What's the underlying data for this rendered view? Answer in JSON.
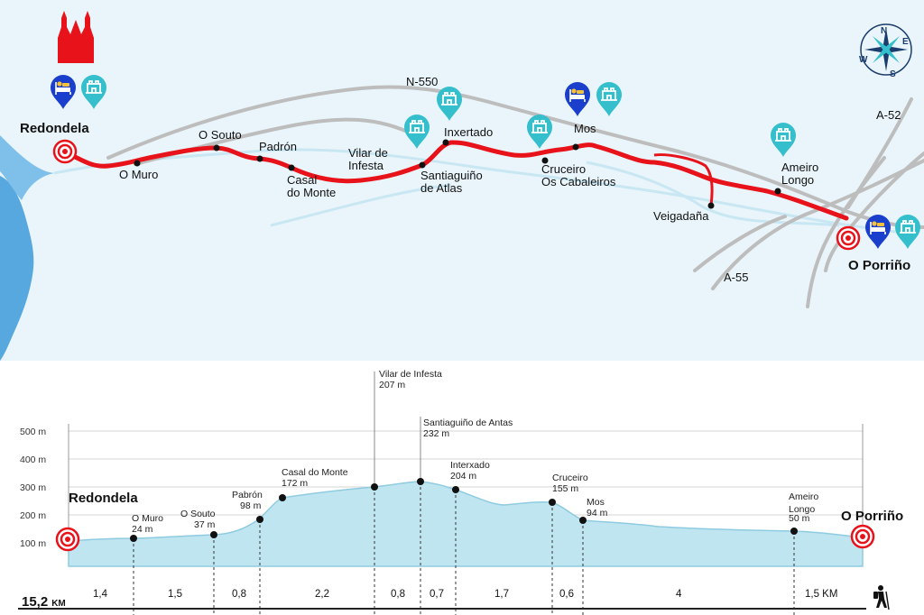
{
  "colors": {
    "map_bg": "#e9f5fa",
    "water": "#d0ecf5",
    "sea": "#58a8e0",
    "road": "#bdbdbd",
    "route": "#e8121a",
    "marker_blue": "#1a3fcc",
    "marker_teal": "#35bfcd",
    "profile_fill": "#bfe5f1",
    "profile_top": "#8fcbe0"
  },
  "map": {
    "start_town": "Redondela",
    "end_town": "O Porriño",
    "roads": [
      "N-550",
      "A-52",
      "A-55"
    ],
    "compass_letters": [
      "N",
      "E",
      "S",
      "W"
    ],
    "places": [
      "O Muro",
      "O Souto",
      "Padrón",
      "Casal\ndo Monte",
      "Vilar de\nInfesta",
      "Santiaguiño\nde Atlas",
      "Inxertado",
      "Cruceiro\nOs Cabaleiros",
      "Mos",
      "Veigadaña",
      "Ameiro\nLongo"
    ],
    "icons": [
      "cathedral-icon",
      "compass-rose-icon",
      "hostel-bed-icon",
      "albergue-tower-icon",
      "start-target-icon",
      "end-target-icon"
    ]
  },
  "profile": {
    "start_town": "Redondela",
    "end_town": "O Porriño",
    "y_axis_labels": [
      "500 m",
      "400 m",
      "300 m",
      "200 m",
      "100 m"
    ],
    "points": [
      {
        "name": "O Muro",
        "elev": "24 m"
      },
      {
        "name": "O Souto",
        "elev": "37 m"
      },
      {
        "name": "Pabrón",
        "elev": "98 m"
      },
      {
        "name": "Casal do Monte",
        "elev": "172 m"
      },
      {
        "name": "Vilar de Infesta",
        "elev": "207 m"
      },
      {
        "name": "Santiaguiño de Antas",
        "elev": "232 m"
      },
      {
        "name": "Interxado",
        "elev": "204 m"
      },
      {
        "name": "Cruceiro",
        "elev": "155 m"
      },
      {
        "name": "Mos",
        "elev": "94 m"
      },
      {
        "name": "Ameiro\nLongo",
        "elev": "50 m"
      }
    ],
    "segments": [
      "1,4",
      "1,5",
      "0,8",
      "2,2",
      "0,8",
      "0,7",
      "1,7",
      "0,6",
      "4",
      "1,5 KM"
    ],
    "total_distance": "15,2",
    "total_unit": "KM",
    "hiker_icon": "hiker-icon"
  }
}
